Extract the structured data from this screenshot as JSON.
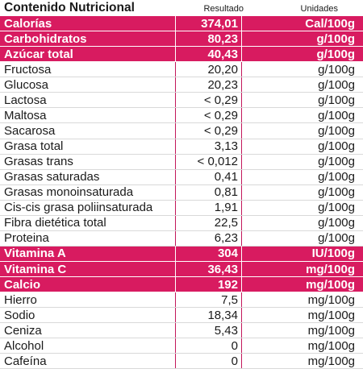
{
  "table": {
    "title": "Contenido Nutricional",
    "result_header": "Resultado",
    "units_header": "Unidades",
    "highlight_color": "#d81b60",
    "rows": [
      {
        "name": "Calorías",
        "value": "374,01",
        "unit": "Cal/100g",
        "highlight": true
      },
      {
        "name": "Carbohidratos",
        "value": "80,23",
        "unit": "g/100g",
        "highlight": true
      },
      {
        "name": "Azúcar total",
        "value": "40,43",
        "unit": "g/100g",
        "highlight": true
      },
      {
        "name": "Fructosa",
        "value": "20,20",
        "unit": "g/100g",
        "highlight": false
      },
      {
        "name": "Glucosa",
        "value": "20,23",
        "unit": "g/100g",
        "highlight": false
      },
      {
        "name": "Lactosa",
        "value": "< 0,29",
        "unit": "g/100g",
        "highlight": false
      },
      {
        "name": "Maltosa",
        "value": "< 0,29",
        "unit": "g/100g",
        "highlight": false
      },
      {
        "name": "Sacarosa",
        "value": "< 0,29",
        "unit": "g/100g",
        "highlight": false
      },
      {
        "name": "Grasa total",
        "value": "3,13",
        "unit": "g/100g",
        "highlight": false
      },
      {
        "name": "Grasas trans",
        "value": "< 0,012",
        "unit": "g/100g",
        "highlight": false
      },
      {
        "name": "Grasas saturadas",
        "value": "0,41",
        "unit": "g/100g",
        "highlight": false
      },
      {
        "name": "Grasas monoinsaturada",
        "value": "0,81",
        "unit": "g/100g",
        "highlight": false
      },
      {
        "name": "Cis-cis grasa poliinsaturada",
        "value": "1,91",
        "unit": "g/100g",
        "highlight": false
      },
      {
        "name": "Fibra dietética total",
        "value": "22,5",
        "unit": "g/100g",
        "highlight": false
      },
      {
        "name": "Proteina",
        "value": "6,23",
        "unit": "g/100g",
        "highlight": false
      },
      {
        "name": "Vitamina A",
        "value": "304",
        "unit": "IU/100g",
        "highlight": true
      },
      {
        "name": "Vitamina C",
        "value": "36,43",
        "unit": "mg/100g",
        "highlight": true
      },
      {
        "name": "Calcio",
        "value": "192",
        "unit": "mg/100g",
        "highlight": true
      },
      {
        "name": "Hierro",
        "value": "7,5",
        "unit": "mg/100g",
        "highlight": false
      },
      {
        "name": "Sodio",
        "value": "18,34",
        "unit": "mg/100g",
        "highlight": false
      },
      {
        "name": "Ceniza",
        "value": "5,43",
        "unit": "mg/100g",
        "highlight": false
      },
      {
        "name": "Alcohol",
        "value": "0",
        "unit": "mg/100g",
        "highlight": false
      },
      {
        "name": "Cafeína",
        "value": "0",
        "unit": "mg/100g",
        "highlight": false
      }
    ]
  }
}
